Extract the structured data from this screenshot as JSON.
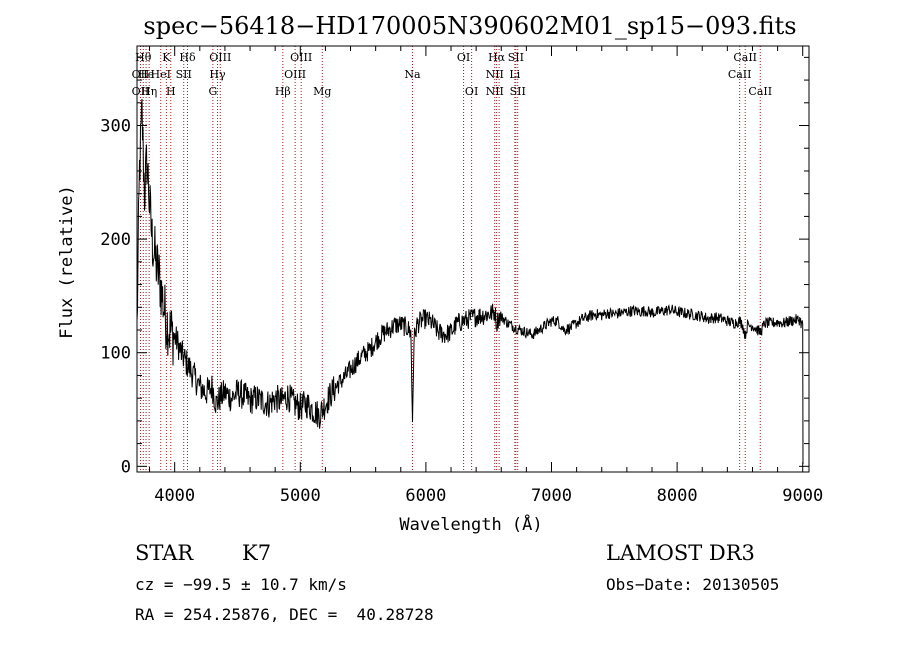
{
  "title": "spec−56418−HD170005N390602M01_sp15−093.fits",
  "chart_data": {
    "type": "line",
    "xlabel": "Wavelength (Å)",
    "ylabel": "Flux (relative)",
    "xlim": [
      3700,
      9050
    ],
    "ylim": [
      -5,
      370
    ],
    "x_ticks": [
      "4000",
      "5000",
      "6000",
      "7000",
      "8000",
      "9000"
    ],
    "y_ticks": [
      "0",
      "100",
      "200",
      "300"
    ],
    "series": [
      {
        "values_x": [
          3700,
          3720,
          3740,
          3760,
          3780,
          3800,
          3820,
          3850,
          3880,
          3900,
          3930,
          3960,
          3990,
          4020,
          4050,
          4100,
          4150,
          4200,
          4250,
          4300,
          4330,
          4360,
          4400,
          4450,
          4500,
          4550,
          4600,
          4650,
          4700,
          4750,
          4800,
          4850,
          4900,
          4950,
          5000,
          5050,
          5100,
          5150,
          5200,
          5250,
          5300,
          5350,
          5400,
          5450,
          5500,
          5550,
          5600,
          5650,
          5700,
          5750,
          5800,
          5850,
          5880,
          5893,
          5905,
          5930,
          5960,
          6000,
          6050,
          6100,
          6150,
          6200,
          6250,
          6300,
          6350,
          6400,
          6450,
          6500,
          6550,
          6563,
          6580,
          6620,
          6650,
          6700,
          6750,
          6800,
          6850,
          6900,
          6950,
          7000,
          7050,
          7100,
          7150,
          7200,
          7250,
          7300,
          7350,
          7400,
          7450,
          7500,
          7550,
          7600,
          7650,
          7700,
          7750,
          7800,
          7850,
          7900,
          7950,
          8000,
          8050,
          8100,
          8150,
          8200,
          8250,
          8300,
          8350,
          8400,
          8450,
          8498,
          8520,
          8542,
          8560,
          8600,
          8662,
          8700,
          8750,
          8800,
          8850,
          8900,
          8950,
          8980,
          8990,
          9000
        ],
        "values_y": [
          120,
          260,
          310,
          240,
          270,
          230,
          200,
          180,
          165,
          150,
          130,
          120,
          115,
          110,
          100,
          90,
          80,
          70,
          65,
          70,
          55,
          60,
          65,
          60,
          65,
          62,
          58,
          60,
          57,
          55,
          60,
          57,
          62,
          55,
          52,
          55,
          50,
          45,
          55,
          65,
          72,
          78,
          85,
          92,
          98,
          102,
          110,
          116,
          120,
          124,
          125,
          122,
          118,
          40,
          112,
          125,
          128,
          130,
          126,
          118,
          116,
          118,
          126,
          128,
          130,
          132,
          133,
          134,
          136,
          125,
          132,
          130,
          126,
          123,
          120,
          118,
          116,
          120,
          124,
          128,
          128,
          120,
          122,
          126,
          130,
          132,
          134,
          133,
          135,
          134,
          135,
          136,
          137,
          136,
          137,
          135,
          136,
          137,
          138,
          136,
          135,
          134,
          133,
          132,
          130,
          131,
          130,
          128,
          126,
          128,
          125,
          115,
          124,
          124,
          118,
          126,
          126,
          127,
          126,
          128,
          129,
          129,
          125,
          125
        ]
      }
    ],
    "lines": [
      {
        "x": 3728,
        "labels": [
          {
            "text": "OII",
            "row": 1
          },
          {
            "text": "OII",
            "row": 2
          }
        ]
      },
      {
        "x": 3750,
        "labels": [
          {
            "text": "Hθ",
            "row": 0
          }
        ]
      },
      {
        "x": 3772,
        "labels": [
          {
            "text": "He",
            "row": 1
          }
        ]
      },
      {
        "x": 3797,
        "labels": [
          {
            "text": "Hη",
            "row": 2
          }
        ]
      },
      {
        "x": 3889,
        "labels": [
          {
            "text": "HeI",
            "row": 1
          }
        ]
      },
      {
        "x": 3934,
        "labels": [
          {
            "text": "K",
            "row": 0
          }
        ]
      },
      {
        "x": 3969,
        "labels": [
          {
            "text": "H",
            "row": 2
          }
        ]
      },
      {
        "x": 4072,
        "labels": [
          {
            "text": "SII",
            "row": 1
          }
        ]
      },
      {
        "x": 4102,
        "labels": [
          {
            "text": "Hδ",
            "row": 0
          }
        ]
      },
      {
        "x": 4304,
        "labels": [
          {
            "text": "G",
            "row": 2
          }
        ]
      },
      {
        "x": 4341,
        "labels": [
          {
            "text": "Hγ",
            "row": 1
          }
        ]
      },
      {
        "x": 4363,
        "labels": [
          {
            "text": "OIII",
            "row": 0
          }
        ]
      },
      {
        "x": 4861,
        "labels": [
          {
            "text": "Hβ",
            "row": 2
          }
        ]
      },
      {
        "x": 4959,
        "labels": [
          {
            "text": "OIII",
            "row": 1
          }
        ]
      },
      {
        "x": 5007,
        "labels": [
          {
            "text": "OIII",
            "row": 0
          }
        ]
      },
      {
        "x": 5175,
        "labels": [
          {
            "text": "Mg",
            "row": 2
          }
        ]
      },
      {
        "x": 5893,
        "labels": [
          {
            "text": "Na",
            "row": 1
          }
        ]
      },
      {
        "x": 6300,
        "labels": [
          {
            "text": "OI",
            "row": 0
          }
        ]
      },
      {
        "x": 6364,
        "labels": [
          {
            "text": "OI",
            "row": 2
          }
        ]
      },
      {
        "x": 6548,
        "labels": [
          {
            "text": "NII",
            "row": 1
          },
          {
            "text": "NII",
            "row": 2
          }
        ]
      },
      {
        "x": 6563,
        "labels": [
          {
            "text": "Hα",
            "row": 0
          }
        ]
      },
      {
        "x": 6583,
        "labels": []
      },
      {
        "x": 6708,
        "labels": [
          {
            "text": "Li",
            "row": 1
          }
        ]
      },
      {
        "x": 6716,
        "labels": [
          {
            "text": "SII",
            "row": 0
          }
        ]
      },
      {
        "x": 6731,
        "labels": [
          {
            "text": "SII",
            "row": 2
          }
        ]
      },
      {
        "x": 8498,
        "labels": [
          {
            "text": "CaII",
            "row": 1
          }
        ]
      },
      {
        "x": 8542,
        "labels": [
          {
            "text": "CaII",
            "row": 0
          }
        ]
      },
      {
        "x": 8662,
        "labels": [
          {
            "text": "CaII",
            "row": 2
          }
        ]
      }
    ]
  },
  "info": {
    "object_class": "STAR",
    "subclass": "K7",
    "survey": "LAMOST DR3",
    "cz": "cz = −99.5 ± 10.7 km/s",
    "obs_date": "Obs−Date: 20130505",
    "coords": "RA = 254.25876, DEC =  40.28728"
  },
  "colors": {
    "line_marker": "#a61c1c",
    "spectrum": "#000000",
    "axes": "#000000"
  }
}
